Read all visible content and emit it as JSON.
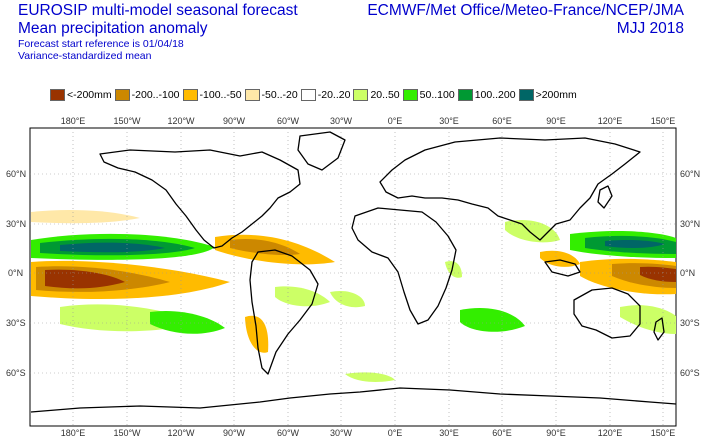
{
  "header": {
    "title": "EUROSIP multi-model seasonal forecast",
    "subtitle": "Mean precipitation anomaly",
    "start_ref": "Forecast start reference is 01/04/18",
    "method": "Variance-standardized mean",
    "centres": "ECMWF/Met Office/Meteo-France/NCEP/JMA",
    "season": "MJJ 2018"
  },
  "legend": [
    {
      "label": "<-200mm",
      "color": "#993300"
    },
    {
      "label": "-200..-100",
      "color": "#cc8800"
    },
    {
      "label": "-100..-50",
      "color": "#ffbb00"
    },
    {
      "label": "-50..-20",
      "color": "#ffe8a8"
    },
    {
      "label": "-20..20",
      "color": "#ffffff"
    },
    {
      "label": "20..50",
      "color": "#ccff66"
    },
    {
      "label": "50..100",
      "color": "#33ee00"
    },
    {
      "label": "100..200",
      "color": "#009933"
    },
    {
      "label": ">200mm",
      "color": "#006666"
    }
  ],
  "map": {
    "lon_labels_top": [
      "180°E",
      "150°W",
      "120°W",
      "90°W",
      "60°W",
      "30°W",
      "0°E",
      "30°E",
      "60°E",
      "90°E",
      "120°E",
      "150°E"
    ],
    "lon_labels_bottom": [
      "180°E",
      "150°W",
      "120°W",
      "90°W",
      "60°W",
      "30°W",
      "0°E",
      "30°E",
      "60°E",
      "90°E",
      "120°E",
      "150°E"
    ],
    "lat_labels_left": [
      "60°N",
      "30°N",
      "0°N",
      "30°S",
      "60°S"
    ],
    "lat_labels_right": [
      "60°N",
      "30°N",
      "0°N",
      "30°S",
      "60°S"
    ]
  }
}
